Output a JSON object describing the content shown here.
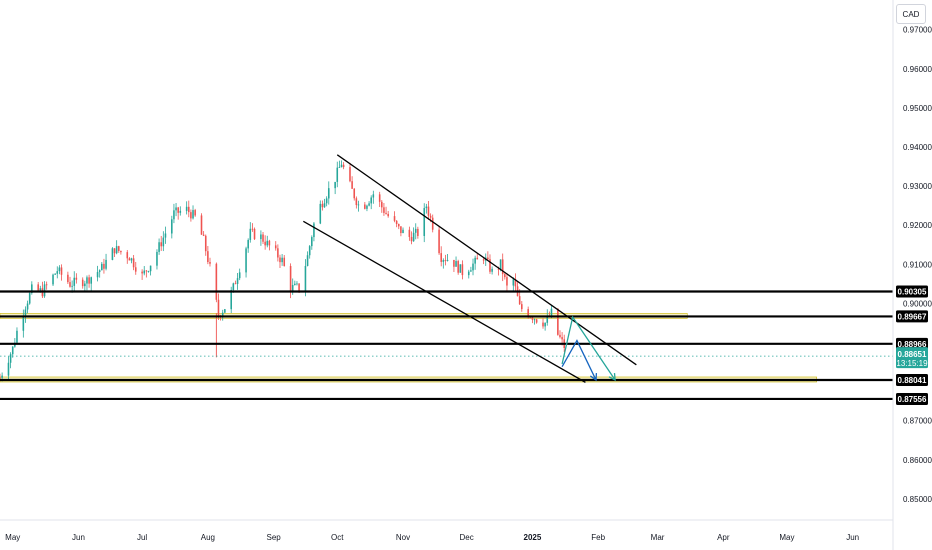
{
  "currency": "CAD",
  "chart_data": {
    "type": "candlestick",
    "ylim": [
      0.8446,
      0.9776
    ],
    "y_ticks": [
      {
        "value": 0.97,
        "label": "0.97000"
      },
      {
        "value": 0.96,
        "label": "0.96000"
      },
      {
        "value": 0.95,
        "label": "0.95000"
      },
      {
        "value": 0.94,
        "label": "0.94000"
      },
      {
        "value": 0.93,
        "label": "0.93000"
      },
      {
        "value": 0.92,
        "label": "0.92000"
      },
      {
        "value": 0.91,
        "label": "0.91000"
      },
      {
        "value": 0.9,
        "label": "0.90000"
      },
      {
        "value": 0.87,
        "label": "0.87000"
      },
      {
        "value": 0.86,
        "label": "0.86000"
      },
      {
        "value": 0.85,
        "label": "0.85000"
      }
    ],
    "x_range": [
      "2024-04-25",
      "2025-06-20"
    ],
    "x_ticks": [
      {
        "date": "2024-05-01",
        "label": "May"
      },
      {
        "date": "2024-06-01",
        "label": "Jun"
      },
      {
        "date": "2024-07-01",
        "label": "Jul"
      },
      {
        "date": "2024-08-01",
        "label": "Aug"
      },
      {
        "date": "2024-09-01",
        "label": "Sep"
      },
      {
        "date": "2024-10-01",
        "label": "Oct"
      },
      {
        "date": "2024-11-01",
        "label": "Nov"
      },
      {
        "date": "2024-12-01",
        "label": "Dec"
      },
      {
        "date": "2025-01-01",
        "label": "2025",
        "bold": true
      },
      {
        "date": "2025-02-01",
        "label": "Feb"
      },
      {
        "date": "2025-03-01",
        "label": "Mar"
      },
      {
        "date": "2025-04-01",
        "label": "Apr"
      },
      {
        "date": "2025-05-01",
        "label": "May"
      },
      {
        "date": "2025-06-01",
        "label": "Jun"
      }
    ],
    "price_path": [
      [
        "2024-04-25",
        0.881
      ],
      [
        "2024-05-01",
        0.8885
      ],
      [
        "2024-05-04",
        0.895
      ],
      [
        "2024-05-07",
        0.8995
      ],
      [
        "2024-05-10",
        0.9035
      ],
      [
        "2024-05-15",
        0.903
      ],
      [
        "2024-05-22",
        0.9085
      ],
      [
        "2024-05-28",
        0.905
      ],
      [
        "2024-06-05",
        0.906
      ],
      [
        "2024-06-12",
        0.909
      ],
      [
        "2024-06-18",
        0.914
      ],
      [
        "2024-06-25",
        0.912
      ],
      [
        "2024-07-01",
        0.907
      ],
      [
        "2024-07-06",
        0.911
      ],
      [
        "2024-07-12",
        0.918
      ],
      [
        "2024-07-16",
        0.923
      ],
      [
        "2024-07-22",
        0.924
      ],
      [
        "2024-07-26",
        0.922
      ],
      [
        "2024-07-30",
        0.916
      ],
      [
        "2024-08-02",
        0.909
      ],
      [
        "2024-08-06",
        0.897
      ],
      [
        "2024-08-09",
        0.899
      ],
      [
        "2024-08-13",
        0.904
      ],
      [
        "2024-08-17",
        0.911
      ],
      [
        "2024-08-21",
        0.918
      ],
      [
        "2024-08-26",
        0.917
      ],
      [
        "2024-08-31",
        0.914
      ],
      [
        "2024-09-05",
        0.911
      ],
      [
        "2024-09-09",
        0.904
      ],
      [
        "2024-09-13",
        0.904
      ],
      [
        "2024-09-17",
        0.912
      ],
      [
        "2024-09-21",
        0.923
      ],
      [
        "2024-09-26",
        0.928
      ],
      [
        "2024-09-30",
        0.932
      ],
      [
        "2024-10-03",
        0.936
      ],
      [
        "2024-10-07",
        0.93
      ],
      [
        "2024-10-12",
        0.924
      ],
      [
        "2024-10-18",
        0.928
      ],
      [
        "2024-10-24",
        0.923
      ],
      [
        "2024-10-30",
        0.919
      ],
      [
        "2024-11-04",
        0.917
      ],
      [
        "2024-11-08",
        0.918
      ],
      [
        "2024-11-12",
        0.925
      ],
      [
        "2024-11-15",
        0.92
      ],
      [
        "2024-11-19",
        0.912
      ],
      [
        "2024-11-24",
        0.911
      ],
      [
        "2024-11-29",
        0.908
      ],
      [
        "2024-12-04",
        0.91
      ],
      [
        "2024-12-09",
        0.912
      ],
      [
        "2024-12-13",
        0.908
      ],
      [
        "2024-12-17",
        0.91
      ],
      [
        "2024-12-20",
        0.904
      ],
      [
        "2024-12-23",
        0.906
      ],
      [
        "2024-12-26",
        0.899
      ],
      [
        "2024-12-30",
        0.8975
      ],
      [
        "2025-01-03",
        0.896
      ],
      [
        "2025-01-07",
        0.895
      ],
      [
        "2025-01-10",
        0.8975
      ],
      [
        "2025-01-13",
        0.892
      ],
      [
        "2025-01-16",
        0.889
      ]
    ],
    "anomaly_wick": {
      "date": "2024-08-05",
      "low": 0.8862,
      "high": 0.8975
    },
    "horizontal_levels": [
      {
        "price": 0.90305,
        "label": "0.90305",
        "color": "#000000",
        "zone": false
      },
      {
        "price": 0.89667,
        "label": "0.89667",
        "color": "#000000",
        "zone": true,
        "zone_to": "2025-03-15"
      },
      {
        "price": 0.88966,
        "label": "0.88966",
        "color": "#000000",
        "zone": false
      },
      {
        "price": 0.88041,
        "label": "0.88041",
        "color": "#000000",
        "zone": true,
        "zone_to": "2025-05-15"
      },
      {
        "price": 0.87556,
        "label": "0.87556",
        "color": "#000000",
        "zone": false
      }
    ],
    "zone_color": "#f0e68c",
    "current_price": {
      "price": 0.88651,
      "label": "0.88651",
      "countdown": "13:15:19",
      "color": "#26a69a"
    },
    "channel_lines": [
      {
        "from": [
          "2024-10-01",
          0.938
        ],
        "to": [
          "2025-02-19",
          0.8843
        ]
      },
      {
        "from": [
          "2024-09-15",
          0.921
        ],
        "to": [
          "2025-01-26",
          0.8798
        ]
      }
    ],
    "projections": [
      {
        "color": "#1565c0",
        "points": [
          [
            "2025-01-15",
            0.8838
          ],
          [
            "2025-01-22",
            0.8905
          ],
          [
            "2025-01-31",
            0.8804
          ]
        ]
      },
      {
        "color": "#26a69a",
        "points": [
          [
            "2025-01-15",
            0.8845
          ],
          [
            "2025-01-20",
            0.8965
          ],
          [
            "2025-02-09",
            0.8804
          ]
        ]
      }
    ],
    "colors": {
      "up": "#26a69a",
      "down": "#ef5350",
      "grid": "#d1d4dc"
    }
  }
}
